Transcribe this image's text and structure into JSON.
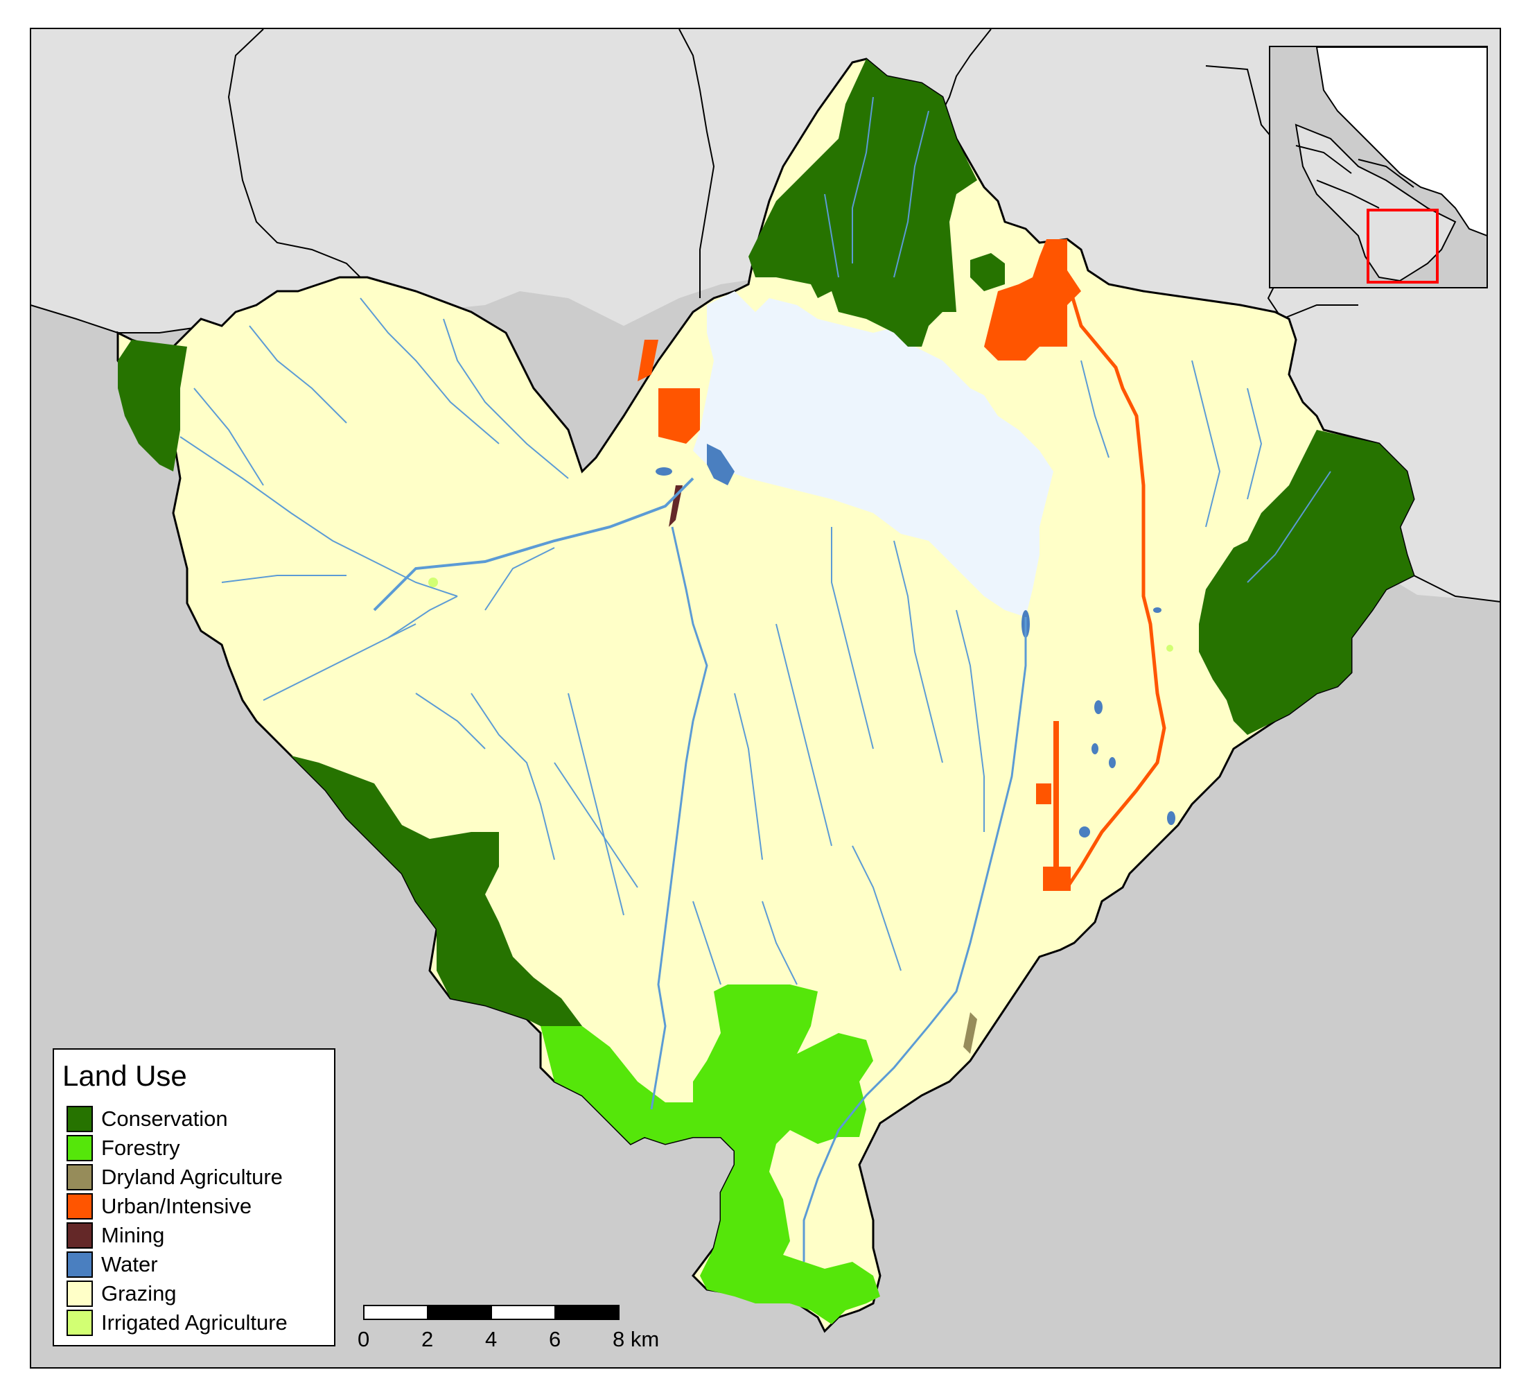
{
  "legend": {
    "title": "Land Use",
    "items": [
      {
        "label": "Conservation",
        "color": "#267300"
      },
      {
        "label": "Forestry",
        "color": "#55e60a"
      },
      {
        "label": "Dryland Agriculture",
        "color": "#968c5a"
      },
      {
        "label": "Urban/Intensive",
        "color": "#ff5500"
      },
      {
        "label": "Mining",
        "color": "#642828"
      },
      {
        "label": "Water",
        "color": "#4a7fc0"
      },
      {
        "label": "Grazing",
        "color": "#ffffc8"
      },
      {
        "label": "Irrigated Agriculture",
        "color": "#d2ff73"
      }
    ]
  },
  "scalebar": {
    "ticks": [
      "0",
      "2",
      "4",
      "6"
    ],
    "last_tick": "8 km"
  },
  "colors": {
    "outside_region": "#cccccc",
    "neighbour_region": "#e1e1e1",
    "reservoir": "#edf5fd",
    "stream": "#5b9bd5",
    "inset_highlight": "#ff0000"
  }
}
